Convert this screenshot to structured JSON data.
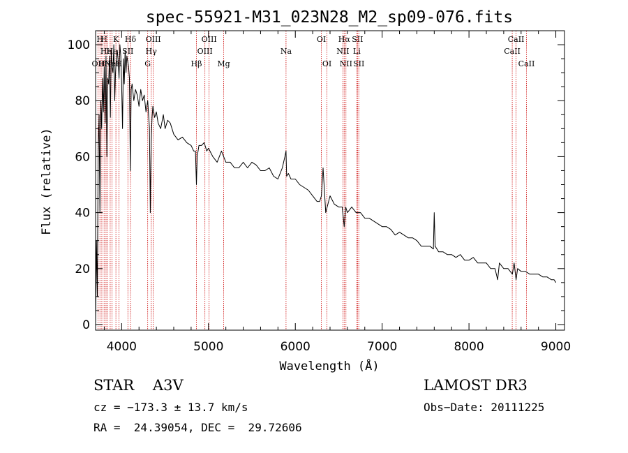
{
  "chart_data": {
    "type": "line",
    "title": "spec-55921-M31_023N28_M2_sp09-076.fits",
    "xlabel": "Wavelength (Å)",
    "ylabel": "Flux (relative)",
    "xlim": [
      3700,
      9100
    ],
    "ylim": [
      -2,
      105
    ],
    "x_ticks": [
      4000,
      5000,
      6000,
      7000,
      8000,
      9000
    ],
    "y_ticks": [
      0,
      20,
      40,
      60,
      80,
      100
    ],
    "series": [
      {
        "name": "flux",
        "x": [
          3700,
          3710,
          3720,
          3730,
          3740,
          3750,
          3760,
          3770,
          3780,
          3790,
          3800,
          3810,
          3820,
          3830,
          3840,
          3850,
          3860,
          3870,
          3880,
          3890,
          3900,
          3910,
          3920,
          3930,
          3940,
          3950,
          3960,
          3970,
          3980,
          3990,
          4000,
          4010,
          4020,
          4030,
          4040,
          4050,
          4060,
          4070,
          4080,
          4090,
          4100,
          4110,
          4120,
          4140,
          4160,
          4180,
          4200,
          4220,
          4240,
          4260,
          4280,
          4300,
          4320,
          4330,
          4340,
          4350,
          4360,
          4380,
          4400,
          4420,
          4450,
          4480,
          4500,
          4530,
          4560,
          4600,
          4650,
          4700,
          4750,
          4800,
          4830,
          4850,
          4861,
          4870,
          4890,
          4920,
          4950,
          4980,
          5000,
          5050,
          5100,
          5150,
          5200,
          5250,
          5300,
          5350,
          5400,
          5450,
          5500,
          5550,
          5600,
          5650,
          5700,
          5750,
          5800,
          5850,
          5880,
          5893,
          5900,
          5920,
          5950,
          6000,
          6050,
          6100,
          6150,
          6200,
          6250,
          6280,
          6300,
          6320,
          6350,
          6400,
          6450,
          6500,
          6540,
          6563,
          6580,
          6600,
          6650,
          6700,
          6750,
          6800,
          6850,
          6900,
          6950,
          7000,
          7050,
          7100,
          7150,
          7200,
          7250,
          7300,
          7350,
          7400,
          7450,
          7500,
          7550,
          7590,
          7600,
          7610,
          7650,
          7700,
          7750,
          7800,
          7850,
          7900,
          7950,
          8000,
          8050,
          8100,
          8150,
          8200,
          8250,
          8300,
          8330,
          8350,
          8400,
          8450,
          8500,
          8520,
          8542,
          8560,
          8600,
          8650,
          8700,
          8750,
          8800,
          8850,
          8900,
          8950,
          8980,
          9000
        ],
        "values": [
          0,
          30,
          10,
          62,
          75,
          40,
          80,
          70,
          88,
          76,
          92,
          72,
          96,
          60,
          88,
          86,
          96,
          74,
          98,
          92,
          90,
          100,
          80,
          90,
          96,
          98,
          94,
          88,
          100,
          96,
          86,
          70,
          95,
          86,
          98,
          90,
          96,
          94,
          92,
          88,
          55,
          84,
          86,
          80,
          84,
          82,
          78,
          84,
          80,
          82,
          76,
          80,
          70,
          40,
          65,
          74,
          78,
          74,
          76,
          72,
          70,
          75,
          70,
          73,
          72,
          68,
          66,
          67,
          65,
          64,
          62,
          62,
          50,
          60,
          64,
          64,
          65,
          62,
          63,
          60,
          58,
          62,
          58,
          58,
          56,
          56,
          58,
          56,
          58,
          57,
          55,
          55,
          56,
          53,
          52,
          56,
          60,
          62,
          53,
          54,
          52,
          52,
          50,
          49,
          48,
          46,
          44,
          44,
          46,
          56,
          40,
          46,
          43,
          42,
          42,
          35,
          42,
          40,
          42,
          40,
          40,
          38,
          38,
          37,
          36,
          35,
          35,
          34,
          32,
          33,
          32,
          31,
          31,
          30,
          28,
          28,
          28,
          27,
          40,
          28,
          26,
          26,
          25,
          25,
          24,
          25,
          23,
          23,
          24,
          22,
          22,
          22,
          20,
          20,
          16,
          22,
          20,
          20,
          18,
          22,
          16,
          20,
          19,
          19,
          18,
          18,
          18,
          17,
          17,
          16,
          16,
          15
        ]
      }
    ],
    "lines": [
      {
        "w": 3727,
        "label": "OII",
        "row": 3
      },
      {
        "w": 3750,
        "label": "H",
        "row": 1
      },
      {
        "w": 3772,
        "label": "H",
        "row": 3
      },
      {
        "w": 3798,
        "label": "H",
        "row": 1
      },
      {
        "w": 3820,
        "label": "He",
        "row": 2
      },
      {
        "w": 3835,
        "label": "H",
        "row": 3
      },
      {
        "w": 3868,
        "label": "Ne",
        "row": 3
      },
      {
        "w": 3889,
        "label": "He",
        "row": 2
      },
      {
        "w": 3934,
        "label": "K",
        "row": 1
      },
      {
        "w": 3969,
        "label": "H",
        "row": 3
      },
      {
        "w": 4072,
        "label": "SII",
        "row": 2
      },
      {
        "w": 4102,
        "label": "Hδ",
        "row": 1
      },
      {
        "w": 4300,
        "label": "G",
        "row": 3
      },
      {
        "w": 4341,
        "label": "Hγ",
        "row": 2
      },
      {
        "w": 4364,
        "label": "OIII",
        "row": 1
      },
      {
        "w": 4861,
        "label": "Hβ",
        "row": 3
      },
      {
        "w": 4959,
        "label": "OIII",
        "row": 2
      },
      {
        "w": 5007,
        "label": "OIII",
        "row": 1
      },
      {
        "w": 5175,
        "label": "Mg",
        "row": 3
      },
      {
        "w": 5893,
        "label": "Na",
        "row": 2
      },
      {
        "w": 6300,
        "label": "OI",
        "row": 1
      },
      {
        "w": 6364,
        "label": "OI",
        "row": 3
      },
      {
        "w": 6548,
        "label": "NII",
        "row": 2
      },
      {
        "w": 6563,
        "label": "Hα",
        "row": 1
      },
      {
        "w": 6583,
        "label": "NII",
        "row": 3
      },
      {
        "w": 6708,
        "label": "Li",
        "row": 2
      },
      {
        "w": 6716,
        "label": "SII",
        "row": 1
      },
      {
        "w": 6731,
        "label": "SII",
        "row": 3
      },
      {
        "w": 8498,
        "label": "CaII",
        "row": 2
      },
      {
        "w": 8542,
        "label": "CaII",
        "row": 1
      },
      {
        "w": 8662,
        "label": "CaII",
        "row": 3
      }
    ]
  },
  "info": {
    "class_line": "STAR    A3V",
    "survey": "LAMOST DR3",
    "cz_line": "cz = −173.3 ± 13.7 km/s",
    "obs_date": "Obs−Date: 20111225",
    "radec_line": "RA =  24.39054, DEC =  29.72606"
  }
}
